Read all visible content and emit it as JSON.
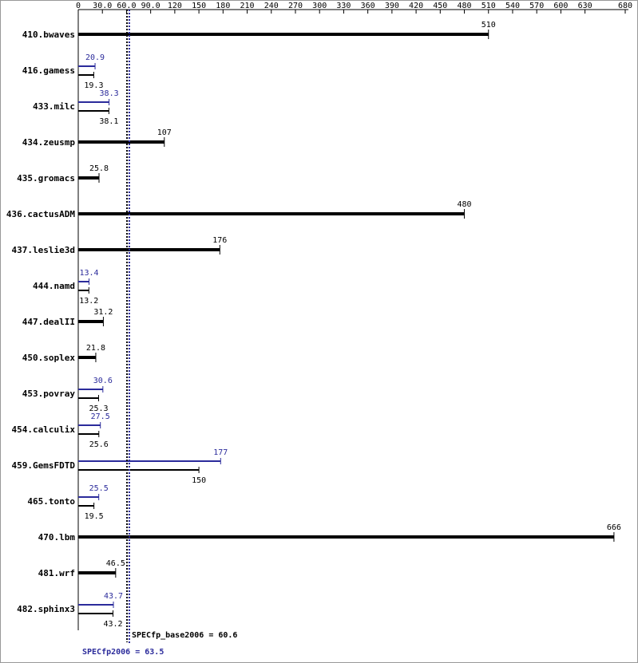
{
  "chart_data": {
    "type": "bar",
    "categories": [
      "410.bwaves",
      "416.gamess",
      "433.milc",
      "434.zeusmp",
      "435.gromacs",
      "436.cactusADM",
      "437.leslie3d",
      "444.namd",
      "447.dealII",
      "450.soplex",
      "453.povray",
      "454.calculix",
      "459.GemsFDTD",
      "465.tonto",
      "470.lbm",
      "481.wrf",
      "482.sphinx3"
    ],
    "series": [
      {
        "color": "#000000",
        "values": [
          510,
          19.3,
          38.1,
          107,
          25.8,
          480,
          176,
          13.2,
          31.2,
          21.8,
          25.3,
          25.6,
          150,
          19.5,
          666,
          46.5,
          43.2
        ]
      },
      {
        "color": "#2b2b9b",
        "values": [
          null,
          20.9,
          38.3,
          null,
          null,
          null,
          null,
          13.4,
          null,
          null,
          30.6,
          27.5,
          177,
          25.5,
          null,
          null,
          43.7
        ]
      }
    ],
    "xlim": [
      0,
      680
    ],
    "xticks": [
      0,
      {
        "value": 30,
        "label": "30.0"
      },
      {
        "value": 60,
        "label": "60.0"
      },
      {
        "value": 90,
        "label": "90.0"
      },
      120,
      150,
      180,
      210,
      240,
      270,
      300,
      330,
      360,
      390,
      420,
      450,
      480,
      510,
      540,
      570,
      600,
      630,
      680
    ],
    "reference_lines": [
      {
        "label": "SPECfp_base2006 = 60.6",
        "value": 60.6,
        "color": "#000000"
      },
      {
        "label": "SPECfp2006 = 63.5",
        "value": 63.5,
        "color": "#2b2b9b"
      }
    ]
  }
}
